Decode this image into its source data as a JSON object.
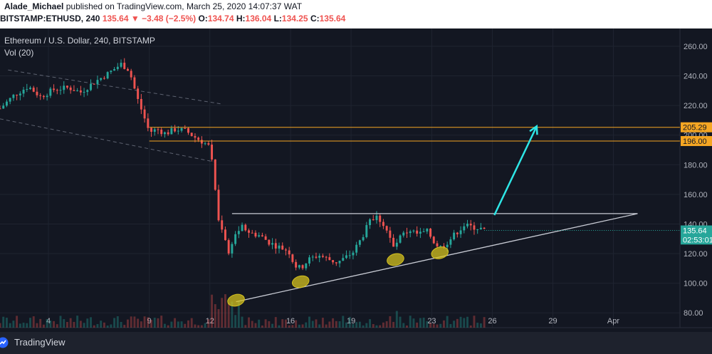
{
  "header": {
    "author": "Alade_Michael",
    "published_text": "published on TradingView.com, March 25, 2020 14:07:37 WAT",
    "symbol": "BITSTAMP:ETHUSD, 240",
    "last": "135.64",
    "change": "▼ −3.48 (−2.5%)",
    "o_label": "O:",
    "o_value": "134.74",
    "h_label": "H:",
    "h_value": "136.04",
    "l_label": "L:",
    "l_value": "134.25",
    "c_label": "C:",
    "c_value": "135.64"
  },
  "legend": {
    "title": "Ethereum / U.S. Dollar, 240, BITSTAMP",
    "indicator": "Vol (20)"
  },
  "footer": {
    "brand": "TradingView"
  },
  "colors": {
    "background": "#131722",
    "up": "#26a69a",
    "down": "#ef5350",
    "resistance": "#f5a623",
    "trendline": "#c8cbd4",
    "arrow": "#2ee6e6",
    "highlight": "#d4c11f"
  },
  "chart_data": {
    "type": "candlestick",
    "ylim": [
      70,
      272
    ],
    "y_ticks": [
      "260.00",
      "240.00",
      "220.00",
      "200.00",
      "180.00",
      "160.00",
      "140.00",
      "120.00",
      "100.00",
      "80.00"
    ],
    "y_tick_values": [
      260,
      240,
      220,
      200,
      180,
      160,
      140,
      120,
      100,
      80
    ],
    "x_ticks": [
      "4",
      "9",
      "12",
      "16",
      "19",
      "23",
      "26",
      "29",
      "Apr"
    ],
    "x_tick_days": [
      4,
      9,
      12,
      16,
      19,
      23,
      26,
      29,
      32
    ],
    "xlim_days": [
      1.6,
      35.3
    ],
    "candles_per_day": 6,
    "price_labels": [
      {
        "value": "205.29",
        "price": 205.29,
        "style": "resistance"
      },
      {
        "value": "196.00",
        "price": 196.0,
        "style": "resistance"
      },
      {
        "value": "135.64",
        "price": 135.64,
        "style": "last"
      },
      {
        "value": "02:53:01",
        "price": 129.5,
        "style": "timer"
      }
    ],
    "resistance_lines": [
      205.29,
      196.0
    ],
    "triangle_top": {
      "from_day": 13.1,
      "to_day": 33.2,
      "price": 147
    },
    "triangle_bottom": {
      "from": [
        13.3,
        87.5
      ],
      "to": [
        33.2,
        147
      ]
    },
    "arrow": {
      "from": [
        26.1,
        146
      ],
      "to": [
        28.2,
        206
      ]
    },
    "touch_points": [
      [
        13.3,
        88.5
      ],
      [
        16.5,
        101
      ],
      [
        21.2,
        116
      ],
      [
        23.4,
        120.5
      ]
    ],
    "price_path": [
      [
        1.6,
        218
      ],
      [
        2.3,
        227
      ],
      [
        3.0,
        233
      ],
      [
        3.6,
        226
      ],
      [
        4.3,
        231
      ],
      [
        5.0,
        232
      ],
      [
        5.6,
        229
      ],
      [
        6.3,
        236
      ],
      [
        7.0,
        242
      ],
      [
        7.6,
        248
      ],
      [
        8.0,
        244
      ],
      [
        8.4,
        225
      ],
      [
        8.8,
        210
      ],
      [
        9.0,
        202
      ],
      [
        9.4,
        204
      ],
      [
        9.8,
        201
      ],
      [
        10.3,
        204
      ],
      [
        10.8,
        203
      ],
      [
        11.2,
        199
      ],
      [
        11.7,
        195
      ],
      [
        12.0,
        192
      ],
      [
        12.2,
        172
      ],
      [
        12.45,
        140
      ],
      [
        12.7,
        136
      ],
      [
        12.9,
        118
      ],
      [
        13.1,
        128
      ],
      [
        13.3,
        134
      ],
      [
        13.6,
        138
      ],
      [
        14.0,
        134
      ],
      [
        14.5,
        132
      ],
      [
        15.0,
        127
      ],
      [
        15.5,
        124
      ],
      [
        15.9,
        122
      ],
      [
        16.2,
        112
      ],
      [
        16.5,
        110
      ],
      [
        16.9,
        116
      ],
      [
        17.4,
        119
      ],
      [
        17.9,
        116
      ],
      [
        18.3,
        114
      ],
      [
        18.7,
        117
      ],
      [
        19.1,
        121
      ],
      [
        19.5,
        130
      ],
      [
        19.9,
        141
      ],
      [
        20.3,
        145
      ],
      [
        20.7,
        138
      ],
      [
        21.1,
        124
      ],
      [
        21.5,
        132
      ],
      [
        21.9,
        136
      ],
      [
        22.3,
        133
      ],
      [
        22.8,
        135
      ],
      [
        23.1,
        128
      ],
      [
        23.4,
        124
      ],
      [
        23.8,
        128
      ],
      [
        24.2,
        134
      ],
      [
        24.6,
        139
      ],
      [
        25.0,
        138
      ],
      [
        25.4,
        137
      ],
      [
        25.6,
        135.6
      ]
    ],
    "volume_scale": 1
  }
}
